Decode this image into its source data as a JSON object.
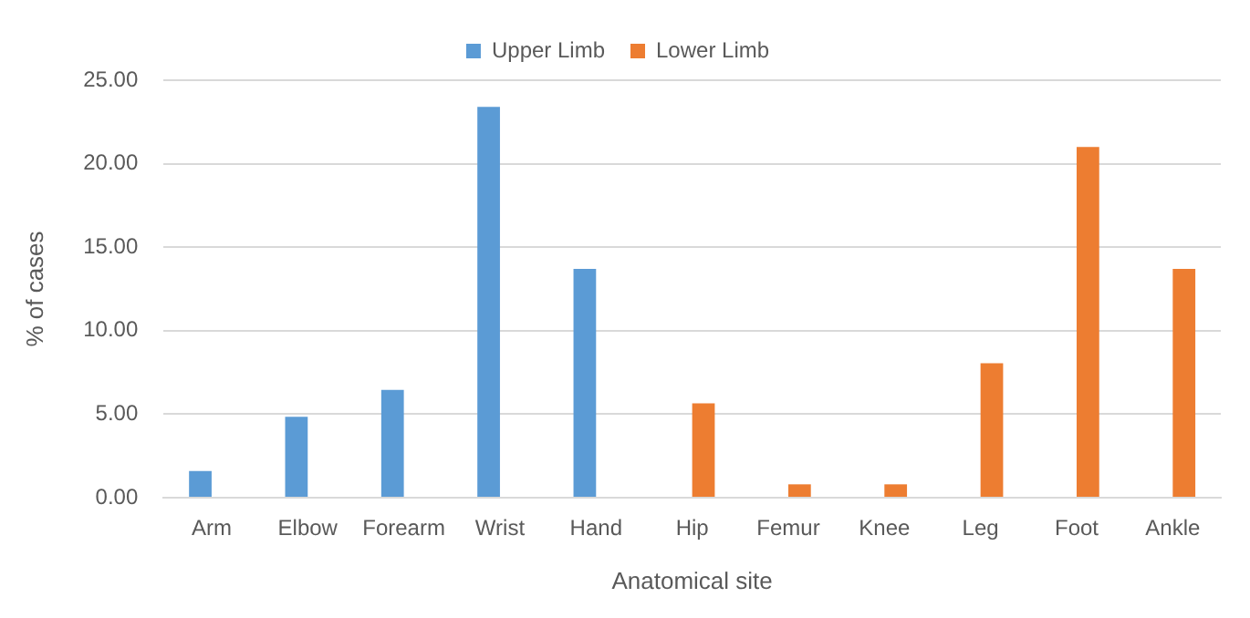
{
  "chart_data": {
    "type": "bar",
    "xlabel": "Anatomical site",
    "ylabel": "% of cases",
    "categories": [
      "Arm",
      "Elbow",
      "Forearm",
      "Wrist",
      "Hand",
      "Hip",
      "Femur",
      "Knee",
      "Leg",
      "Foot",
      "Ankle"
    ],
    "series": [
      {
        "name": "Upper Limb",
        "color": "#5b9bd5",
        "values": [
          1.6,
          4.85,
          6.45,
          23.4,
          13.7,
          null,
          null,
          null,
          null,
          null,
          null
        ]
      },
      {
        "name": "Lower Limb",
        "color": "#ed7d31",
        "values": [
          null,
          null,
          null,
          null,
          null,
          5.65,
          0.8,
          0.8,
          8.05,
          21.0,
          13.7
        ]
      }
    ],
    "ylim": [
      0,
      25
    ],
    "yticks": [
      {
        "value": 0,
        "label": "0.00"
      },
      {
        "value": 5,
        "label": "5.00"
      },
      {
        "value": 10,
        "label": "10.00"
      },
      {
        "value": 15,
        "label": "15.00"
      },
      {
        "value": 20,
        "label": "20.00"
      },
      {
        "value": 25,
        "label": "25.00"
      }
    ],
    "grid": "y",
    "legend": "top"
  }
}
